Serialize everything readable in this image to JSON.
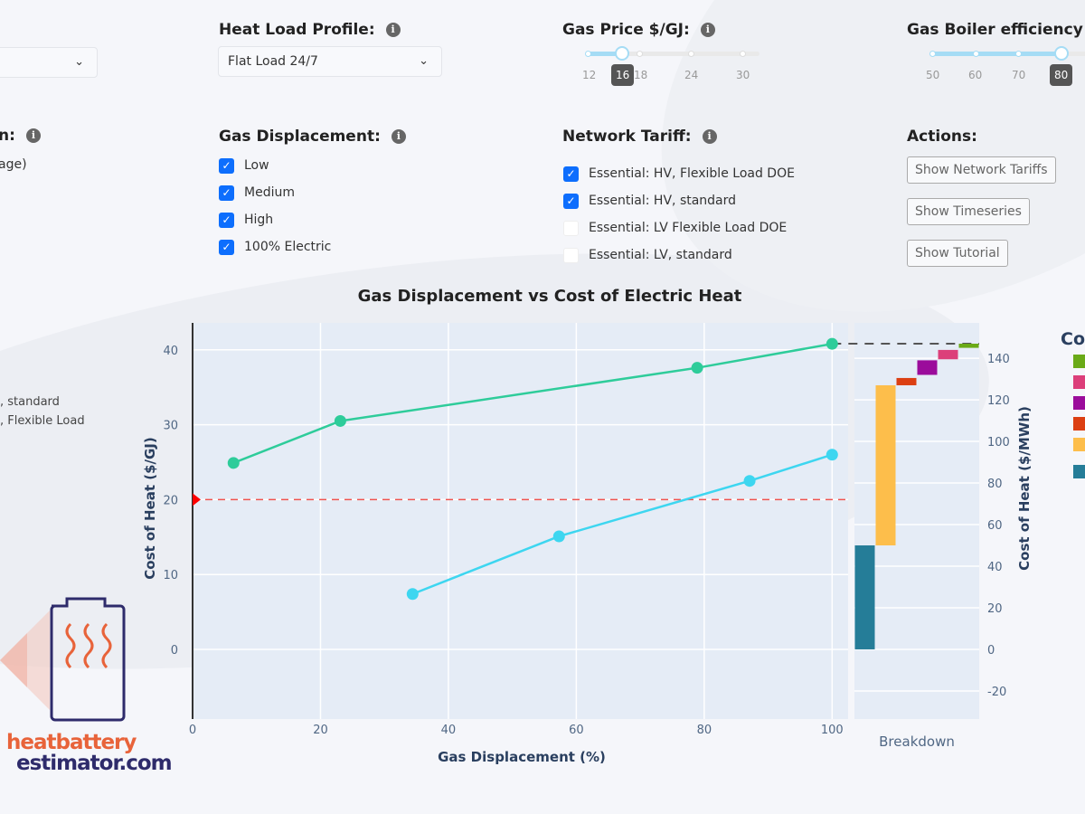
{
  "controls": {
    "left_select": {
      "value": ""
    },
    "heat_load": {
      "label": "Heat Load Profile:",
      "value": "Flat Load 24/7"
    },
    "gas_price": {
      "label": "Gas Price $/GJ:",
      "ticks": [
        "12",
        "18",
        "24",
        "30"
      ],
      "value": "16",
      "min": 12,
      "max": 30,
      "current": 16
    },
    "boiler_eff": {
      "label": "Gas Boiler efficiency %",
      "ticks": [
        "50",
        "60",
        "70"
      ],
      "value": "80",
      "current": 80
    },
    "left_partial": {
      "label": "n:",
      "value": "age)"
    },
    "gas_displacement": {
      "label": "Gas Displacement:",
      "options": [
        {
          "label": "Low",
          "checked": true
        },
        {
          "label": "Medium",
          "checked": true
        },
        {
          "label": "High",
          "checked": true
        },
        {
          "label": "100% Electric",
          "checked": true
        }
      ]
    },
    "network_tariff": {
      "label": "Network Tariff:",
      "options": [
        {
          "label": "Essential: HV, Flexible Load DOE",
          "checked": true
        },
        {
          "label": "Essential: HV, standard",
          "checked": true
        },
        {
          "label": "Essential: LV Flexible Load DOE",
          "checked": false
        },
        {
          "label": "Essential: LV, standard",
          "checked": false
        }
      ]
    },
    "actions": {
      "label": "Actions:",
      "buttons": [
        "Show Network Tariffs",
        "Show Timeseries",
        "Show Tutorial"
      ]
    }
  },
  "left_legend": [
    ", standard",
    ", Flexible Load"
  ],
  "right_legend": {
    "title": "Co",
    "colors": [
      "#6aaa17",
      "#dc3f7a",
      "#9b0c9b",
      "#dc3f12",
      "#fdbe4b",
      "#257d98"
    ]
  },
  "logo": {
    "line1": "heatbattery",
    "line2": "estimator.com"
  },
  "chart_data": {
    "type": "line",
    "title": "Gas Displacement vs Cost of Electric Heat",
    "xlabel": "Gas Displacement (%)",
    "ylabel": "Cost of Heat ($/GJ)",
    "y2label": "Cost of Heat ($/MWh)",
    "xlim": [
      0,
      102.5
    ],
    "ylim": [
      -9.3,
      43.6
    ],
    "x_ticks": [
      "0",
      "20",
      "40",
      "60",
      "80",
      "100"
    ],
    "y_ticks": [
      "0",
      "10",
      "20",
      "30",
      "40"
    ],
    "grid": true,
    "series": [
      {
        "color": "#2ecc9a",
        "x": [
          6.4,
          23.1,
          78.9,
          100
        ],
        "y": [
          24.9,
          30.5,
          37.6,
          40.8
        ]
      },
      {
        "color": "#3dd6f0",
        "x": [
          34.4,
          57.3,
          87.1,
          100
        ],
        "y": [
          7.4,
          15.1,
          22.5,
          26.0
        ]
      }
    ],
    "reference_line": {
      "y": 20,
      "color": "#ef5350"
    },
    "breakdown": {
      "type": "waterfall",
      "xlabel": "Breakdown",
      "ylim": [
        -33.5,
        157
      ],
      "y_ticks": [
        "-20",
        "0",
        "20",
        "40",
        "60",
        "80",
        "100",
        "120",
        "140"
      ],
      "total_line": 147,
      "bars": [
        {
          "base": 0,
          "top": 50,
          "color": "#257d98"
        },
        {
          "base": 50,
          "top": 127,
          "color": "#fdbe4b"
        },
        {
          "base": 127,
          "top": 130.5,
          "color": "#dc3f12"
        },
        {
          "base": 132,
          "top": 139,
          "color": "#9b0c9b"
        },
        {
          "base": 139.5,
          "top": 144,
          "color": "#dc3f7a"
        },
        {
          "base": 145,
          "top": 147,
          "color": "#6aaa17"
        }
      ]
    }
  }
}
